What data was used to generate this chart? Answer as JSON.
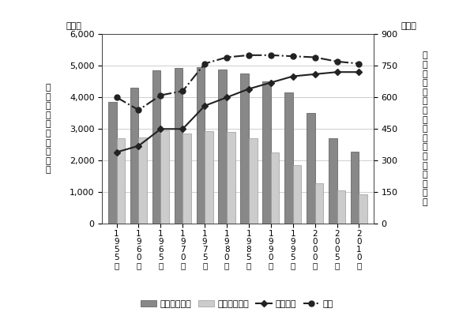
{
  "years": [
    "1\n9\n5\n5\n年",
    "1\n9\n6\n0\n年",
    "1\n9\n6\n5\n年",
    "1\n9\n7\n0\n年",
    "1\n9\n7\n5\n年",
    "1\n9\n8\n0\n年",
    "1\n9\n8\n5\n年",
    "1\n9\n9\n0\n年",
    "1\n9\n9\n5\n年",
    "2\n0\n0\n0\n年",
    "2\n0\n0\n5\n年",
    "2\n0\n1\n0\n年"
  ],
  "years_plain": [
    "1955年",
    "1960年",
    "1965年",
    "1970年",
    "1975年",
    "1980年",
    "1985年",
    "1990年",
    "1995年",
    "2000年",
    "2005年",
    "2010年"
  ],
  "girls_only": [
    3850,
    4300,
    4850,
    4930,
    4950,
    4870,
    4750,
    4500,
    4150,
    3500,
    2700,
    2280
  ],
  "boys_only": [
    2700,
    2720,
    2950,
    2850,
    2930,
    2900,
    2700,
    2250,
    1850,
    1280,
    1060,
    940
  ],
  "coed_line": [
    340,
    370,
    450,
    450,
    560,
    600,
    640,
    670,
    700,
    710,
    720,
    720
  ],
  "total_line": [
    600,
    540,
    610,
    630,
    760,
    790,
    800,
    800,
    795,
    790,
    770,
    760
  ],
  "left_ylim": [
    0,
    6000
  ],
  "right_ylim": [
    0,
    900
  ],
  "left_yticks": [
    0,
    1000,
    2000,
    3000,
    4000,
    5000,
    6000
  ],
  "right_yticks": [
    0,
    150,
    300,
    450,
    600,
    750,
    900
  ],
  "left_ylabel": "男女が在籍する学校数",
  "right_ylabel": "女子のみ・男子のみが在籍する学校数",
  "left_unit": "（校）",
  "right_unit": "（校）",
  "girls_color": "#888888",
  "boys_color": "#cccccc",
  "coed_color": "#222222",
  "total_color": "#222222",
  "legend_girls": "女子のみ在籍",
  "legend_boys": "男子のみ在籍",
  "legend_coed": "男女在籍",
  "legend_total": "合計",
  "bg_color": "#ffffff",
  "left_ytick_labels": [
    "0",
    "1,000",
    "2,000",
    "3,000",
    "4,000",
    "5,000",
    "6,000"
  ],
  "right_ytick_labels": [
    "0",
    "150",
    "300",
    "450",
    "600",
    "750",
    "900"
  ]
}
